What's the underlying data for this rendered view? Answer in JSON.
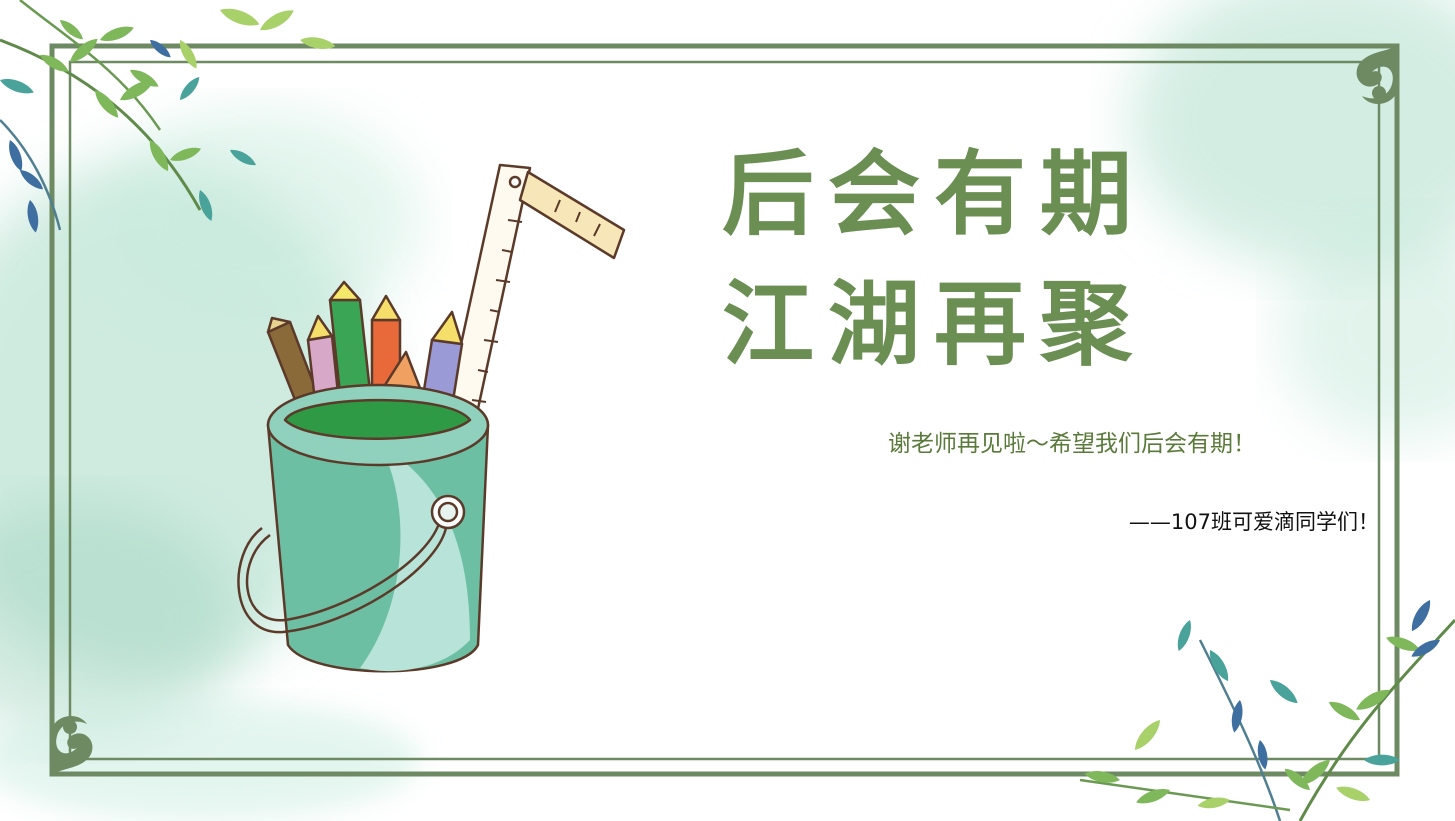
{
  "slide": {
    "title_line_1": "后会有期",
    "title_line_2": "江湖再聚",
    "subtitle": "谢老师再见啦～希望我们后会有期！",
    "signature": "——107班可爱滴同学们！"
  },
  "colors": {
    "title": "#6b8f53",
    "frame": "#6e8a63",
    "watercolor": "#9fd8c2"
  },
  "illustrations": [
    "leaf-branch-top-left",
    "leaf-branch-bottom-right",
    "pencil-cup",
    "ruler",
    "corner-ornaments"
  ]
}
